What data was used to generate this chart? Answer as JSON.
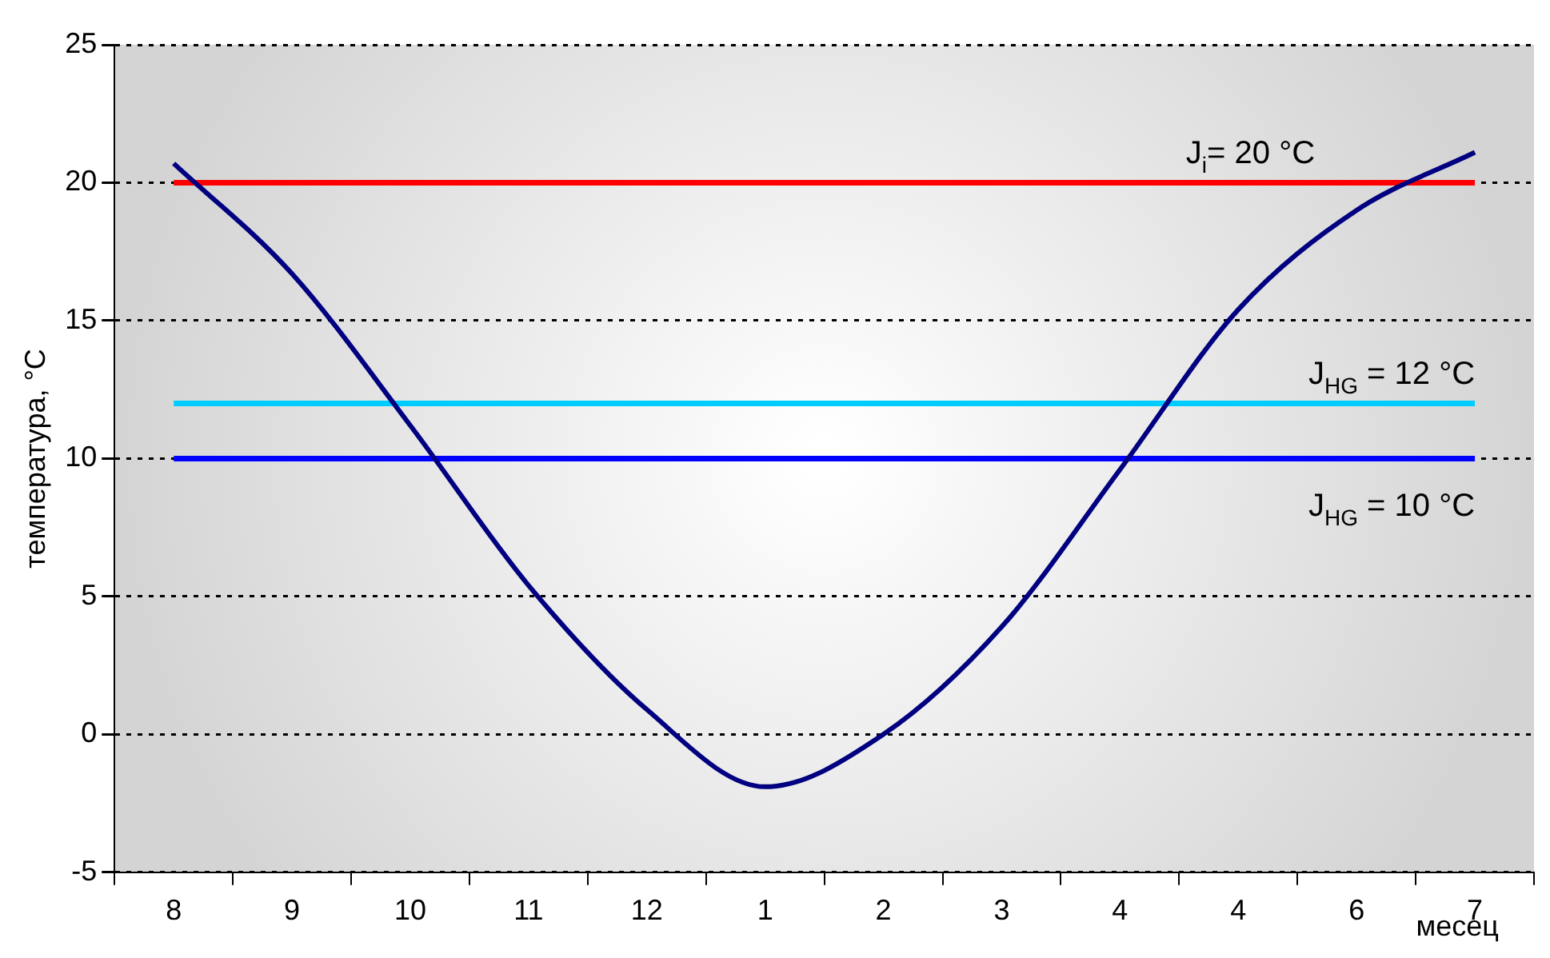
{
  "chart_data": {
    "type": "line",
    "ylabel": "температура, °C",
    "xlabel": "месец",
    "categories": [
      "8",
      "9",
      "10",
      "11",
      "12",
      "1",
      "2",
      "3",
      "4",
      "4",
      "6",
      "7"
    ],
    "series": [
      {
        "color": "#000080",
        "values": [
          20.7,
          16.7,
          11.2,
          5.4,
          0.9,
          -1.9,
          0,
          3.9,
          9.6,
          15.4,
          19,
          21.1
        ]
      }
    ],
    "ylim": [
      -5,
      25
    ],
    "yticks": [
      -5,
      0,
      5,
      10,
      15,
      20,
      25
    ],
    "grid": "y",
    "legend": false,
    "marker": "none",
    "line_style": "solid",
    "ref_lines": [
      {
        "axis": "y",
        "value": 20,
        "label": "J$_{i}$= 20 °C",
        "color": "#ff0000"
      },
      {
        "axis": "y",
        "value": 12,
        "label": "J$_{HG}$ = 12 °C",
        "color": "#00ccff"
      },
      {
        "axis": "y",
        "value": 10,
        "label": "J$_{HG}$ = 10 °C",
        "color": "#0000ff"
      }
    ]
  }
}
